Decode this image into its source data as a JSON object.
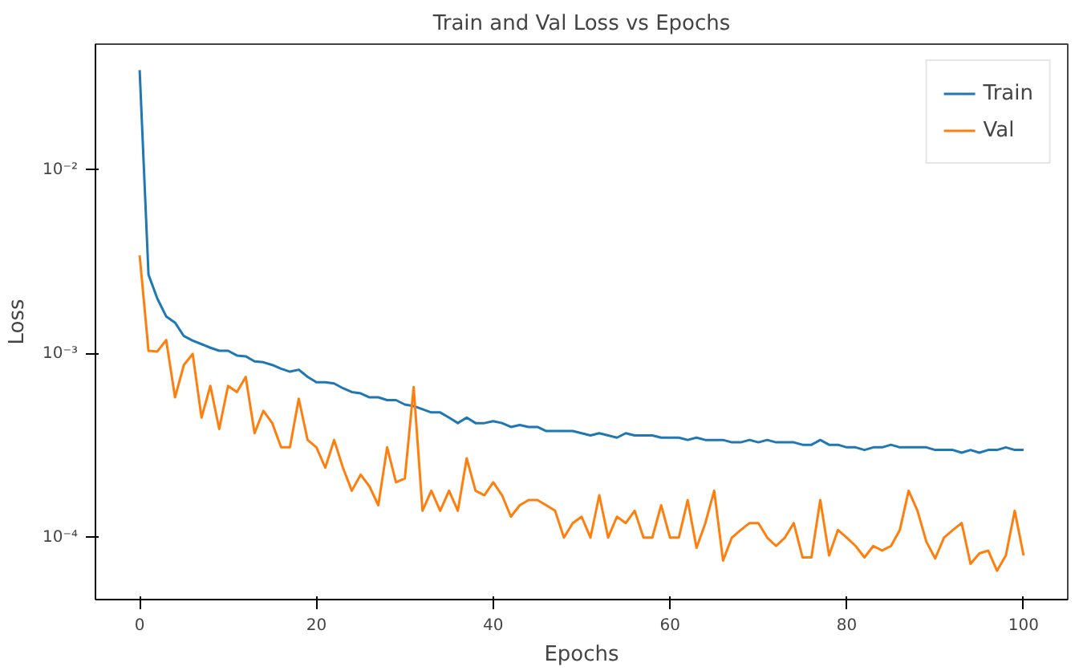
{
  "chart_data": {
    "type": "line",
    "title": "Train and Val Loss vs Epochs",
    "xlabel": "Epochs",
    "ylabel": "Loss",
    "log": "y",
    "grid": false,
    "legend": "top right",
    "xlim": [
      -5,
      105
    ],
    "xticks": [
      0,
      20,
      40,
      60,
      80,
      100
    ],
    "ylim": [
      4.6e-05,
      0.0485
    ],
    "yticks": [
      {
        "value": 0.0001,
        "label": "10⁻⁴"
      },
      {
        "value": 0.001,
        "label": "10⁻³"
      },
      {
        "value": 0.01,
        "label": "10⁻²"
      }
    ],
    "x": [
      0,
      1,
      2,
      3,
      4,
      5,
      6,
      7,
      8,
      9,
      10,
      11,
      12,
      13,
      14,
      15,
      16,
      17,
      18,
      19,
      20,
      21,
      22,
      23,
      24,
      25,
      26,
      27,
      28,
      29,
      30,
      31,
      32,
      33,
      34,
      35,
      36,
      37,
      38,
      39,
      40,
      41,
      42,
      43,
      44,
      45,
      46,
      47,
      48,
      49,
      50,
      51,
      52,
      53,
      54,
      55,
      56,
      57,
      58,
      59,
      60,
      61,
      62,
      63,
      64,
      65,
      66,
      67,
      68,
      69,
      70,
      71,
      72,
      73,
      74,
      75,
      76,
      77,
      78,
      79,
      80,
      81,
      82,
      83,
      84,
      85,
      86,
      87,
      88,
      89,
      90,
      91,
      92,
      93,
      94,
      95,
      96,
      97,
      98,
      99,
      100
    ],
    "series": [
      {
        "name": "Train",
        "color": "#1f77b4",
        "values": [
          0.035,
          0.0027,
          0.002,
          0.0016,
          0.00148,
          0.00125,
          0.00118,
          0.00113,
          0.00108,
          0.00104,
          0.00104,
          0.00098,
          0.00097,
          0.00091,
          0.0009,
          0.00087,
          0.00083,
          0.0008,
          0.00082,
          0.00075,
          0.0007,
          0.0007,
          0.00069,
          0.00065,
          0.00062,
          0.00061,
          0.00058,
          0.00058,
          0.00056,
          0.00056,
          0.00053,
          0.00052,
          0.0005,
          0.00048,
          0.00048,
          0.00045,
          0.00042,
          0.00045,
          0.00042,
          0.00042,
          0.00043,
          0.00042,
          0.0004,
          0.00041,
          0.0004,
          0.0004,
          0.00038,
          0.00038,
          0.00038,
          0.00038,
          0.00037,
          0.00036,
          0.00037,
          0.00036,
          0.00035,
          0.00037,
          0.00036,
          0.00036,
          0.00036,
          0.00035,
          0.00035,
          0.00035,
          0.00034,
          0.00035,
          0.00034,
          0.00034,
          0.00034,
          0.00033,
          0.00033,
          0.00034,
          0.00033,
          0.00034,
          0.00033,
          0.00033,
          0.00033,
          0.00032,
          0.00032,
          0.00034,
          0.00032,
          0.00032,
          0.00031,
          0.00031,
          0.0003,
          0.00031,
          0.00031,
          0.00032,
          0.00031,
          0.00031,
          0.00031,
          0.00031,
          0.0003,
          0.0003,
          0.0003,
          0.00029,
          0.0003,
          0.00029,
          0.0003,
          0.0003,
          0.00031,
          0.0003,
          0.0003
        ]
      },
      {
        "name": "Val",
        "color": "#ff7f0e",
        "values": [
          0.00344,
          0.00104,
          0.00103,
          0.00119,
          0.00058,
          0.00087,
          0.001,
          0.00045,
          0.00067,
          0.00039,
          0.00067,
          0.00062,
          0.00075,
          0.00037,
          0.00049,
          0.00042,
          0.00031,
          0.00031,
          0.00057,
          0.00034,
          0.00031,
          0.00024,
          0.00034,
          0.00024,
          0.00018,
          0.00022,
          0.00019,
          0.00015,
          0.00031,
          0.0002,
          0.00021,
          0.00066,
          0.00014,
          0.00018,
          0.00014,
          0.00018,
          0.00014,
          0.00027,
          0.00018,
          0.00017,
          0.0002,
          0.00017,
          0.00013,
          0.00015,
          0.00016,
          0.00016,
          0.00015,
          0.00014,
          0.0001,
          0.00012,
          0.00013,
          0.0001,
          0.00017,
          0.0001,
          0.00013,
          0.00012,
          0.00014,
          0.0001,
          0.0001,
          0.00015,
          0.0001,
          0.0001,
          0.00016,
          8.8e-05,
          0.00012,
          0.00018,
          7.5e-05,
          0.0001,
          0.00011,
          0.00012,
          0.00012,
          0.0001,
          9e-05,
          0.0001,
          0.00012,
          7.8e-05,
          7.8e-05,
          0.00016,
          8e-05,
          0.00011,
          0.0001,
          9e-05,
          7.8e-05,
          9e-05,
          8.5e-05,
          9e-05,
          0.00011,
          0.00018,
          0.00014,
          9.5e-05,
          7.7e-05,
          0.0001,
          0.00011,
          0.00012,
          7.2e-05,
          8.2e-05,
          8.5e-05,
          6.6e-05,
          8e-05,
          0.00014,
          8e-05
        ]
      }
    ]
  }
}
